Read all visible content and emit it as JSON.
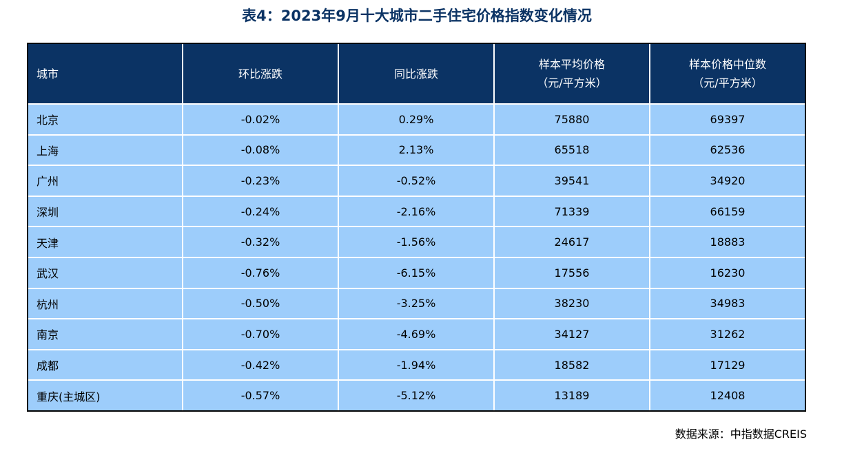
{
  "title": "表4：2023年9月十大城市二手住宅价格指数变化情况",
  "table": {
    "headers": {
      "city": "城市",
      "mom": "环比涨跌",
      "yoy": "同比涨跌",
      "avg_line1": "样本平均价格",
      "avg_line2": "（元/平方米）",
      "median_line1": "样本价格中位数",
      "median_line2": "（元/平方米）"
    },
    "rows": [
      {
        "city": "北京",
        "mom": "-0.02%",
        "yoy": "0.29%",
        "avg": "75880",
        "median": "69397"
      },
      {
        "city": "上海",
        "mom": "-0.08%",
        "yoy": "2.13%",
        "avg": "65518",
        "median": "62536"
      },
      {
        "city": "广州",
        "mom": "-0.23%",
        "yoy": "-0.52%",
        "avg": "39541",
        "median": "34920"
      },
      {
        "city": "深圳",
        "mom": "-0.24%",
        "yoy": "-2.16%",
        "avg": "71339",
        "median": "66159"
      },
      {
        "city": "天津",
        "mom": "-0.32%",
        "yoy": "-1.56%",
        "avg": "24617",
        "median": "18883"
      },
      {
        "city": "武汉",
        "mom": "-0.76%",
        "yoy": "-6.15%",
        "avg": "17556",
        "median": "16230"
      },
      {
        "city": "杭州",
        "mom": "-0.50%",
        "yoy": "-3.25%",
        "avg": "38230",
        "median": "34983"
      },
      {
        "city": "南京",
        "mom": "-0.70%",
        "yoy": "-4.69%",
        "avg": "34127",
        "median": "31262"
      },
      {
        "city": "成都",
        "mom": "-0.42%",
        "yoy": "-1.94%",
        "avg": "18582",
        "median": "17129"
      },
      {
        "city": "重庆(主城区)",
        "mom": "-0.57%",
        "yoy": "-5.12%",
        "avg": "13189",
        "median": "12408"
      }
    ]
  },
  "source": "数据来源：中指数据CREIS",
  "colors": {
    "title": "#0b3364",
    "header_bg": "#0b3364",
    "row_bg": "#9dcdfb",
    "border": "#000000"
  }
}
